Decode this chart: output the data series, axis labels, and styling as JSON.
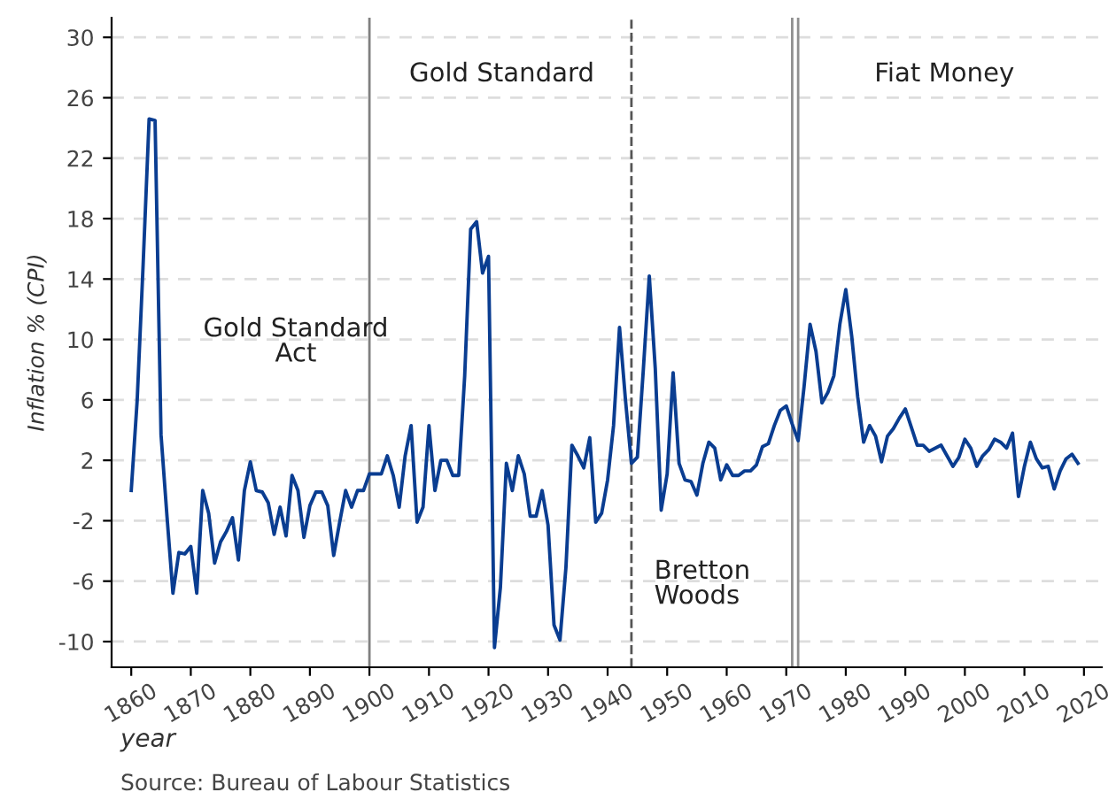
{
  "chart_data": {
    "type": "line",
    "ylabel": "Inflation % (CPI)",
    "xlabel": "year",
    "x": [
      1860,
      1861,
      1862,
      1863,
      1864,
      1865,
      1866,
      1867,
      1868,
      1869,
      1870,
      1871,
      1872,
      1873,
      1874,
      1875,
      1876,
      1877,
      1878,
      1879,
      1880,
      1881,
      1882,
      1883,
      1884,
      1885,
      1886,
      1887,
      1888,
      1889,
      1890,
      1891,
      1892,
      1893,
      1894,
      1895,
      1896,
      1897,
      1898,
      1899,
      1900,
      1901,
      1902,
      1903,
      1904,
      1905,
      1906,
      1907,
      1908,
      1909,
      1910,
      1911,
      1912,
      1913,
      1914,
      1915,
      1916,
      1917,
      1918,
      1919,
      1920,
      1921,
      1922,
      1923,
      1924,
      1925,
      1926,
      1927,
      1928,
      1929,
      1930,
      1931,
      1932,
      1933,
      1934,
      1935,
      1936,
      1937,
      1938,
      1939,
      1940,
      1941,
      1942,
      1943,
      1944,
      1945,
      1946,
      1947,
      1948,
      1949,
      1950,
      1951,
      1952,
      1953,
      1954,
      1955,
      1956,
      1957,
      1958,
      1959,
      1960,
      1961,
      1962,
      1963,
      1964,
      1965,
      1966,
      1967,
      1968,
      1969,
      1970,
      1971,
      1972,
      1973,
      1974,
      1975,
      1976,
      1977,
      1978,
      1979,
      1980,
      1981,
      1982,
      1983,
      1984,
      1985,
      1986,
      1987,
      1988,
      1989,
      1990,
      1991,
      1992,
      1993,
      1994,
      1995,
      1996,
      1997,
      1998,
      1999,
      2000,
      2001,
      2002,
      2003,
      2004,
      2005,
      2006,
      2007,
      2008,
      2009,
      2010,
      2011,
      2012,
      2013,
      2014,
      2015,
      2016,
      2017,
      2018,
      2019
    ],
    "series": [
      {
        "color": "#0a3d91",
        "values": [
          0,
          6.0,
          15,
          24.6,
          24.5,
          3.7,
          -1.7,
          -6.8,
          -4.1,
          -4.2,
          -3.7,
          -6.8,
          0,
          -1.5,
          -4.8,
          -3.4,
          -2.7,
          -1.8,
          -4.6,
          0,
          1.9,
          0,
          -0.1,
          -0.8,
          -2.9,
          -1.1,
          -3.0,
          1.0,
          0,
          -3.1,
          -1.0,
          -0.1,
          -0.1,
          -1.0,
          -4.3,
          -2.1,
          0,
          -1.1,
          0,
          0,
          1.1,
          1.1,
          1.1,
          2.3,
          1.0,
          -1.1,
          2.3,
          4.3,
          -2.1,
          -1.1,
          4.3,
          0,
          2.0,
          2.0,
          1.0,
          1.0,
          7.6,
          17.3,
          17.8,
          14.4,
          15.5,
          -10.4,
          -6.4,
          1.8,
          0,
          2.3,
          1.1,
          -1.7,
          -1.7,
          0,
          -2.3,
          -8.9,
          -9.9,
          -5.1,
          3.0,
          2.3,
          1.5,
          3.5,
          -2.1,
          -1.5,
          0.7,
          4.3,
          10.8,
          6.0,
          1.8,
          2.2,
          8.0,
          14.2,
          8.1,
          -1.3,
          1.1,
          7.8,
          1.8,
          0.7,
          0.6,
          -0.3,
          1.8,
          3.2,
          2.8,
          0.7,
          1.7,
          1.0,
          1.0,
          1.3,
          1.3,
          1.7,
          2.9,
          3.1,
          4.3,
          5.3,
          5.6,
          4.4,
          3.3,
          6.9,
          11.0,
          9.2,
          5.8,
          6.5,
          7.6,
          11.0,
          13.3,
          10.2,
          6.2,
          3.2,
          4.3,
          3.6,
          1.9,
          3.6,
          4.1,
          4.8,
          5.4,
          4.2,
          3.0,
          3.0,
          2.6,
          2.8,
          3.0,
          2.3,
          1.6,
          2.2,
          3.4,
          2.8,
          1.6,
          2.3,
          2.7,
          3.4,
          3.2,
          2.8,
          3.8,
          -0.4,
          1.6,
          3.2,
          2.1,
          1.5,
          1.6,
          0.1,
          1.3,
          2.1,
          2.4,
          1.8
        ]
      }
    ],
    "xlim": [
      1856.7,
      2023
    ],
    "xticks": [
      1860,
      1870,
      1880,
      1890,
      1900,
      1910,
      1920,
      1930,
      1940,
      1950,
      1960,
      1970,
      1980,
      1990,
      2000,
      2010,
      2020
    ],
    "ylim": [
      -11.7,
      31.3
    ],
    "yticks": [
      -10,
      -6,
      -2,
      2,
      6,
      10,
      14,
      18,
      22,
      26,
      30
    ],
    "grid": "y",
    "marker": "none",
    "line_style": "solid",
    "ref_lines": [
      {
        "axis": "x",
        "value": 1900,
        "color": "#808080",
        "line_style": "solid"
      },
      {
        "axis": "x",
        "value": 1944,
        "color": "#555555",
        "line_style": "dashed"
      },
      {
        "axis": "x",
        "value": 1971,
        "color": "#909090",
        "line_style": "solid"
      },
      {
        "axis": "x",
        "value": 1972,
        "color": "#909090",
        "line_style": "solid"
      }
    ],
    "annotations": [
      "Gold Standard\nAct",
      "Gold Standard",
      "Bretton\nWoods",
      "Fiat Money",
      "Source: Bureau of Labour Statistics"
    ]
  }
}
